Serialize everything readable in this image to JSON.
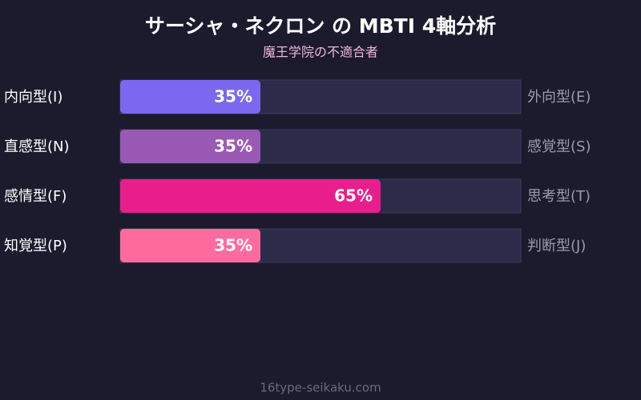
{
  "chart_data": {
    "type": "bar",
    "title": "サーシャ・ネクロン の MBTI 4軸分析",
    "subtitle": "魔王学院の不適合者",
    "categories": [
      "内向型(I)",
      "直感型(N)",
      "感情型(F)",
      "知覚型(P)"
    ],
    "opposite_categories": [
      "外向型(E)",
      "感覚型(S)",
      "思考型(T)",
      "判断型(J)"
    ],
    "values": [
      35,
      35,
      65,
      35
    ],
    "value_labels": [
      "35%",
      "35%",
      "65%",
      "35%"
    ],
    "colors": [
      "#7b68ee",
      "#9b59b6",
      "#e91e8c",
      "#ff6b9d"
    ],
    "xlim": [
      0,
      100
    ],
    "footer": "16type-seikaku.com"
  }
}
